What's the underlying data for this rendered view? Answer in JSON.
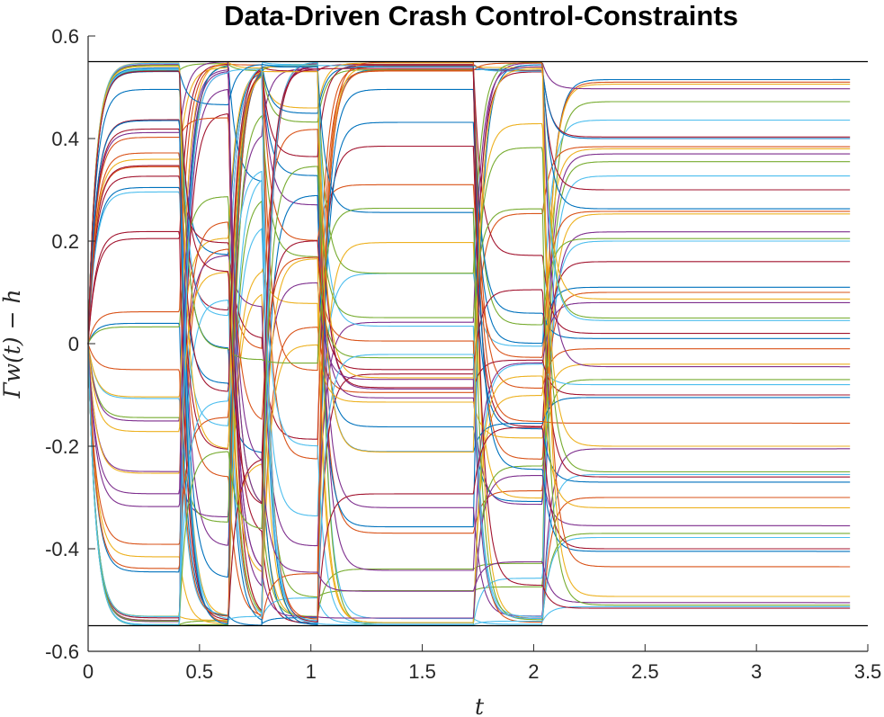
{
  "chart_data": {
    "type": "line",
    "title": "Data-Driven Crash Control-Constraints",
    "xlabel": "t",
    "ylabel": "Γw(t) − h",
    "xlim": [
      0,
      3.5
    ],
    "ylim": [
      -0.6,
      0.6
    ],
    "xticks": [
      {
        "value": 0,
        "label": "0"
      },
      {
        "value": 0.5,
        "label": "0.5"
      },
      {
        "value": 1,
        "label": "1"
      },
      {
        "value": 1.5,
        "label": "1.5"
      },
      {
        "value": 2,
        "label": "2"
      },
      {
        "value": 2.5,
        "label": "2.5"
      },
      {
        "value": 3,
        "label": "3"
      },
      {
        "value": 3.5,
        "label": "3.5"
      }
    ],
    "yticks": [
      {
        "value": -0.6,
        "label": "-0.6"
      },
      {
        "value": -0.4,
        "label": "-0.4"
      },
      {
        "value": -0.2,
        "label": "-0.2"
      },
      {
        "value": 0,
        "label": "0"
      },
      {
        "value": 0.2,
        "label": "0.2"
      },
      {
        "value": 0.4,
        "label": "0.4"
      },
      {
        "value": 0.6,
        "label": "0.6"
      }
    ],
    "constraint_bounds": [
      -0.55,
      0.55
    ],
    "t_end": 3.42,
    "switch_times": [
      0.41,
      0.63,
      0.78,
      1.03,
      1.73,
      2.04
    ],
    "grid": false,
    "legend": "none",
    "colors": [
      "#0072BD",
      "#D95319",
      "#EDB120",
      "#7E2F8E",
      "#77AC30",
      "#4DBEEE",
      "#A2142F"
    ],
    "final_values": [
      0.515,
      0.51,
      0.506,
      0.497,
      0.472,
      0.436,
      0.403,
      0.4,
      0.384,
      0.38,
      0.37,
      0.355,
      0.327,
      0.3,
      0.263,
      0.258,
      0.253,
      0.218,
      0.205,
      0.2,
      0.16,
      0.11,
      0.1,
      0.087,
      0.08,
      0.05,
      0.045,
      0.02,
      0.01,
      -0.01,
      -0.04,
      -0.045,
      -0.07,
      -0.08,
      -0.1,
      -0.105,
      -0.155,
      -0.2,
      -0.205,
      -0.25,
      -0.255,
      -0.26,
      -0.27,
      -0.3,
      -0.32,
      -0.355,
      -0.37,
      -0.378,
      -0.4,
      -0.405,
      -0.435,
      -0.493,
      -0.505,
      -0.51,
      -0.513,
      -0.516
    ]
  }
}
